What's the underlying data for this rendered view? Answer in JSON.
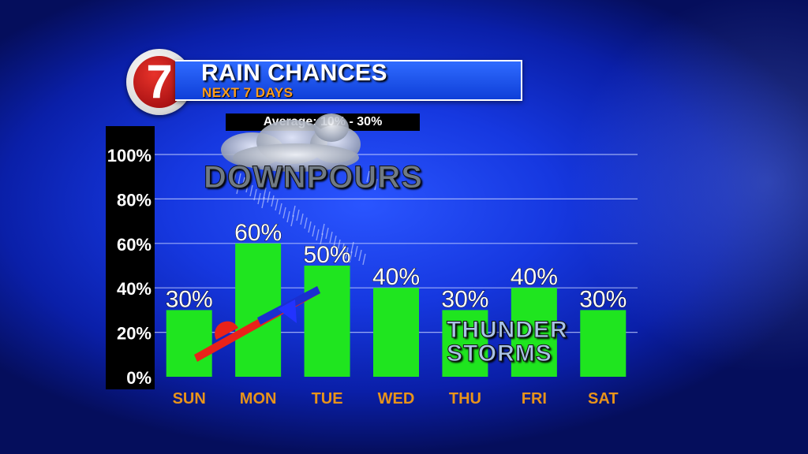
{
  "header": {
    "logo_text": "7",
    "title": "RAIN CHANCES",
    "subtitle": "NEXT 7 DAYS",
    "average": "Average: 10% - 30%"
  },
  "annotations": {
    "downpours": "DOWNPOURS",
    "thunderstorms_line1": "THUNDER",
    "thunderstorms_line2": "STORMS"
  },
  "colors": {
    "bar": "#1fe51f",
    "day_label": "#e8931a",
    "value_label": "#ffffff",
    "warm_front": "#e8221a",
    "cold_front": "#1a2fd0"
  },
  "chart_data": {
    "type": "bar",
    "title": "RAIN CHANCES",
    "subtitle": "NEXT 7 DAYS",
    "categories": [
      "SUN",
      "MON",
      "TUE",
      "WED",
      "THU",
      "FRI",
      "SAT"
    ],
    "values": [
      30,
      60,
      50,
      40,
      30,
      40,
      30
    ],
    "value_labels": [
      "30%",
      "60%",
      "50%",
      "40%",
      "30%",
      "40%",
      "30%"
    ],
    "yticks": [
      "0%",
      "20%",
      "40%",
      "60%",
      "80%",
      "100%"
    ],
    "ylim": [
      0,
      100
    ],
    "grid": true,
    "legend": "none"
  }
}
